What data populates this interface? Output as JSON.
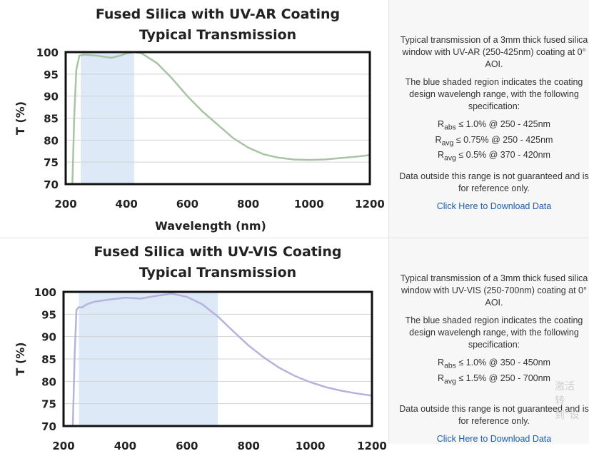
{
  "rows": [
    {
      "chart_data": {
        "type": "line",
        "title": "Fused Silica with UV-AR Coating",
        "subtitle": "Typical Transmission",
        "xlabel": "Wavelength (nm)",
        "ylabel": "T (%)",
        "xlim": [
          200,
          1200
        ],
        "ylim": [
          70,
          100
        ],
        "xticks": [
          "200",
          "400",
          "600",
          "800",
          "1000",
          "1200"
        ],
        "yticks": [
          "70",
          "75",
          "80",
          "85",
          "90",
          "95",
          "100"
        ],
        "shaded_region": [
          250,
          425
        ],
        "line_color": "#a8c4a4",
        "shade_color": "#dde9f6",
        "x": [
          222,
          228,
          235,
          245,
          260,
          300,
          350,
          380,
          400,
          425,
          450,
          500,
          550,
          600,
          650,
          700,
          750,
          800,
          850,
          900,
          950,
          1000,
          1050,
          1100,
          1150,
          1200
        ],
        "y": [
          70,
          85,
          96,
          99.2,
          99.4,
          99.2,
          98.7,
          99.2,
          99.7,
          100,
          99.7,
          97.5,
          94,
          90,
          86.5,
          83.5,
          80.5,
          78.3,
          76.8,
          76,
          75.6,
          75.5,
          75.6,
          75.9,
          76.2,
          76.6
        ]
      },
      "description": [
        "Typical transmission of a 3mm thick fused silica window with UV-AR (250-425nm) coating at 0° AOI.",
        "The blue shaded region indicates the coating design wavelengh range, with the following specification:"
      ],
      "specs": [
        {
          "main": "R",
          "sub": "abs",
          "text": " ≤ 1.0% @ 250 - 425nm"
        },
        {
          "main": "R",
          "sub": "avg",
          "text": " ≤ 0.75% @ 250 - 425nm"
        },
        {
          "main": "R",
          "sub": "avg",
          "text": " ≤ 0.5% @ 370 - 420nm"
        }
      ],
      "note": "Data outside this range is not guaranteed and is for reference only.",
      "download_label": "Click Here to Download Data"
    },
    {
      "chart_data": {
        "type": "line",
        "title": "Fused Silica with UV-VIS Coating",
        "subtitle": "Typical Transmission",
        "xlabel": "",
        "ylabel": "T (%)",
        "xlim": [
          200,
          1200
        ],
        "ylim": [
          70,
          100
        ],
        "xticks": [
          "200",
          "400",
          "600",
          "800",
          "1000",
          "1200"
        ],
        "yticks": [
          "70",
          "75",
          "80",
          "85",
          "90",
          "95",
          "100"
        ],
        "shaded_region": [
          250,
          700
        ],
        "line_color": "#b6b2de",
        "shade_color": "#dde9f6",
        "x": [
          230,
          236,
          242,
          250,
          260,
          275,
          300,
          350,
          400,
          450,
          500,
          550,
          600,
          650,
          700,
          750,
          800,
          850,
          900,
          950,
          1000,
          1050,
          1100,
          1150,
          1200
        ],
        "y": [
          70,
          86,
          96,
          96.6,
          96.5,
          97.2,
          97.8,
          98.3,
          98.7,
          98.5,
          99.1,
          99.6,
          98.9,
          97.2,
          94.5,
          91.2,
          88,
          85.3,
          83,
          81.2,
          79.8,
          78.7,
          77.9,
          77.3,
          76.8
        ]
      },
      "description": [
        "Typical transmission of a 3mm thick fused silica window with UV-VIS (250-700nm) coating at 0° AOI.",
        "The blue shaded region indicates the coating design wavelengh range, with the following specification:"
      ],
      "specs": [
        {
          "main": "R",
          "sub": "abs",
          "text": " ≤ 1.0% @ 350 - 450nm"
        },
        {
          "main": "R",
          "sub": "avg",
          "text": " ≤ 1.5% @ 250 - 700nm"
        }
      ],
      "note": "Data outside this range is not guaranteed and is for reference only.",
      "download_label": "Click Here to Download Data"
    }
  ],
  "watermark": [
    "激活",
    "转到\"设"
  ]
}
